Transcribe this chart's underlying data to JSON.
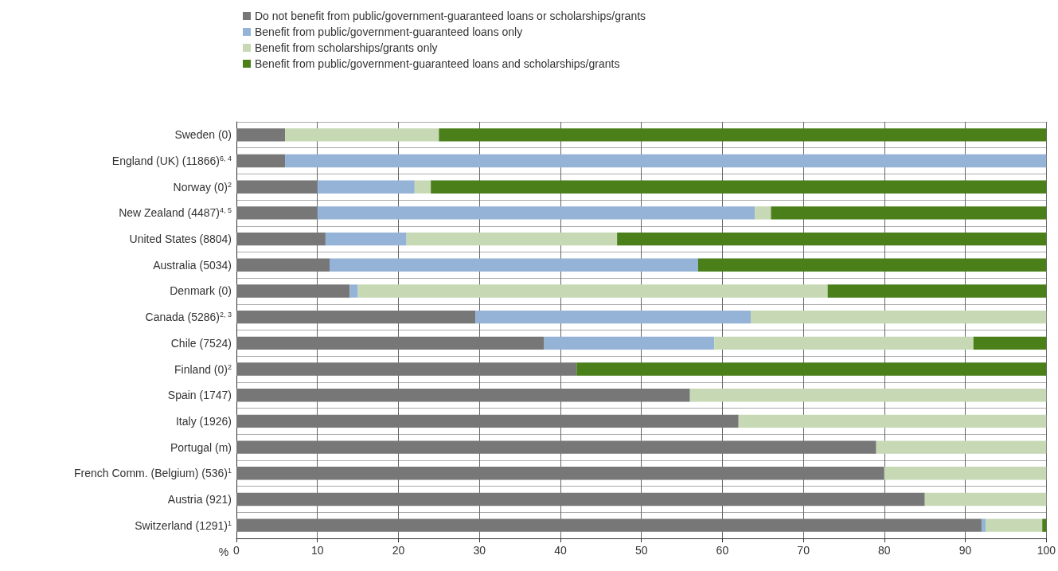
{
  "chart_data": {
    "type": "bar",
    "orientation": "horizontal",
    "stacked": true,
    "legend": "top",
    "grid": true,
    "xlabel": "%",
    "categories": [
      "Sweden (0)",
      "England (UK) (11866)$^{6, 4}$",
      "Norway (0)$^{2}$",
      "New Zealand (4487)$^{4, 5}$",
      "United States (8804)",
      "Australia (5034)",
      "Denmark (0)",
      "Canada (5286)$^{2, 3}$",
      "Chile (7524)",
      "Finland (0)$^{2}$",
      "Spain (1747)",
      "Italy (1926)",
      "Portugal (m)",
      "French Comm. (Belgium) (536)$^{1}$",
      "Austria (921)",
      "Switzerland (1291)$^{1}$"
    ],
    "xlim": [
      0,
      100
    ],
    "xticks": [
      0,
      10,
      20,
      30,
      40,
      50,
      60,
      70,
      80,
      90,
      100
    ],
    "series": [
      {
        "name": "Do not benefit from public/government-guaranteed loans or scholarships/grants",
        "color": "#777777",
        "values": [
          6,
          6,
          10,
          10,
          11,
          11.5,
          14,
          29.5,
          38,
          42,
          56,
          62,
          79,
          80,
          85,
          92
        ]
      },
      {
        "name": "Benefit from public/government-guaranteed loans only",
        "color": "#95b3d7",
        "values": [
          0,
          94,
          12,
          54,
          10,
          45.5,
          1,
          34,
          21,
          0,
          0,
          0,
          0,
          0,
          0,
          0.5
        ]
      },
      {
        "name": "Benefit from scholarships/grants only",
        "color": "#c6d9b4",
        "values": [
          19,
          0,
          2,
          2,
          26,
          0,
          58,
          36.5,
          32,
          0,
          44,
          38,
          21,
          20,
          15,
          7
        ]
      },
      {
        "name": "Benefit from public/government-guaranteed loans and scholarships/grants",
        "color": "#4a7f1a",
        "values": [
          75,
          0,
          76,
          34,
          53,
          43,
          27,
          0,
          9,
          58,
          0,
          0,
          0,
          0,
          0,
          0.5
        ]
      }
    ]
  }
}
